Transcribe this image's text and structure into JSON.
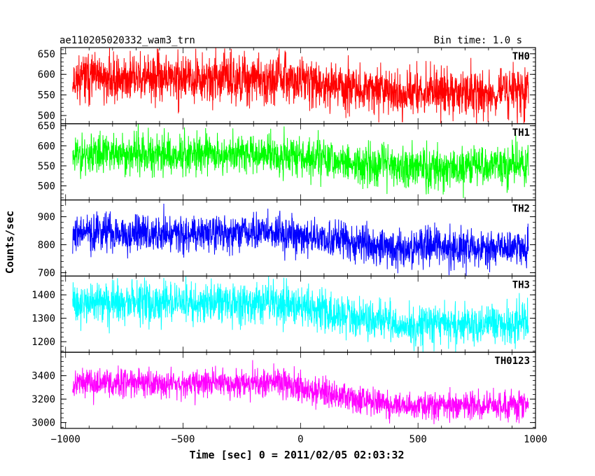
{
  "header": {
    "title": "ae110205020332_wam3_trn",
    "bin_time": "Bin time: 1.0 s"
  },
  "chart_data": {
    "type": "line",
    "ylabel": "Counts/sec",
    "xlabel": "Time [sec] 0 = 2011/02/05 02:03:32",
    "xlim": [
      -1020,
      1000
    ],
    "x_range": [
      -970,
      970
    ],
    "x_ticks": [
      {
        "value": -1000,
        "label": "−1000"
      },
      {
        "value": -500,
        "label": "−500"
      },
      {
        "value": 0,
        "label": "0"
      },
      {
        "value": 500,
        "label": "500"
      },
      {
        "value": 1000,
        "label": "1000"
      }
    ],
    "panels": [
      {
        "name": "TH0",
        "color": "#ff0000",
        "ylim": [
          480,
          665
        ],
        "yticks": [
          500,
          550,
          600,
          650
        ],
        "start": 590,
        "end": 555,
        "noise": 28,
        "seed": 11
      },
      {
        "name": "TH1",
        "color": "#00ff00",
        "ylim": [
          465,
          655
        ],
        "yticks": [
          500,
          550,
          600,
          650
        ],
        "start": 580,
        "end": 548,
        "noise": 25,
        "seed": 23
      },
      {
        "name": "TH2",
        "color": "#0000ff",
        "ylim": [
          688,
          960
        ],
        "yticks": [
          700,
          800,
          900
        ],
        "start": 842,
        "end": 790,
        "noise": 33,
        "seed": 37
      },
      {
        "name": "TH3",
        "color": "#00ffff",
        "ylim": [
          1155,
          1480
        ],
        "yticks": [
          1200,
          1300,
          1400
        ],
        "start": 1365,
        "end": 1275,
        "noise": 42,
        "seed": 41
      },
      {
        "name": "TH0123",
        "color": "#ff00ff",
        "ylim": [
          2950,
          3600
        ],
        "yticks": [
          3000,
          3200,
          3400
        ],
        "start": 3340,
        "end": 3140,
        "noise": 60,
        "seed": 53
      }
    ]
  }
}
